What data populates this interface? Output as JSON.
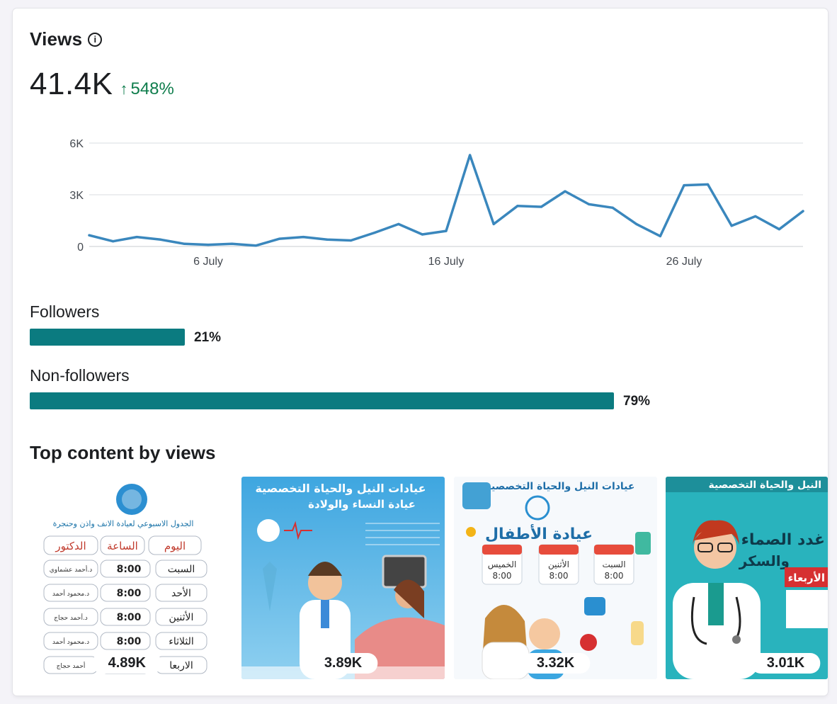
{
  "views": {
    "title": "Views",
    "total": "41.4K",
    "change": "548%"
  },
  "chart_data": {
    "type": "line",
    "title": "",
    "xlabel": "",
    "ylabel": "",
    "x": [
      "1 July",
      "2 July",
      "3 July",
      "4 July",
      "5 July",
      "6 July",
      "7 July",
      "8 July",
      "9 July",
      "10 July",
      "11 July",
      "12 July",
      "13 July",
      "14 July",
      "15 July",
      "16 July",
      "17 July",
      "18 July",
      "19 July",
      "20 July",
      "21 July",
      "22 July",
      "23 July",
      "24 July",
      "25 July",
      "26 July",
      "27 July",
      "28 July",
      "29 July",
      "30 July",
      "31 July"
    ],
    "series": [
      {
        "values": [
          650,
          300,
          550,
          400,
          150,
          100,
          150,
          50,
          450,
          550,
          400,
          350,
          800,
          1300,
          700,
          900,
          5300,
          1300,
          2350,
          2300,
          3200,
          2450,
          2250,
          1300,
          600,
          3550,
          3600,
          1200,
          1750,
          1000,
          2050
        ]
      }
    ],
    "yticks": [
      "0",
      "3K",
      "6K"
    ],
    "ytick_values": [
      0,
      3000,
      6000
    ],
    "xticks": [
      "6 July",
      "16 July",
      "26 July"
    ],
    "ylim": [
      0,
      6000
    ],
    "grid": true,
    "line_color": "#3a87bd"
  },
  "audience": [
    {
      "label": "Followers",
      "percent": "21%",
      "fraction": 0.21
    },
    {
      "label": "Non-followers",
      "percent": "79%",
      "fraction": 0.79
    }
  ],
  "top_content": {
    "title": "Top content by views",
    "items": [
      {
        "views": "4.89K",
        "heading": "الجدول الاسبوعي لعيادة الانف واذن وحنجرة",
        "col1": "اليوم",
        "col2": "الساعة",
        "col3": "الدكتور",
        "days": [
          "السبت",
          "الأحد",
          "الأثنين",
          "الثلاثاء",
          "الاربعا"
        ],
        "time": "8:00",
        "doctors": [
          "د.أحمد عشماوي",
          "د.محمود أحمد",
          "د.أحمد حجاج",
          "د.محمود أحمد",
          "أحمد حجاج"
        ]
      },
      {
        "views": "3.89K",
        "heading": "عيادات النيل والحياة التخصصية",
        "subheading": "عيادة النساء والولادة"
      },
      {
        "views": "3.32K",
        "heading": "عيادات النيل والحياة التخصصية",
        "subheading": "عيادة الأطفال",
        "days": [
          "الخميس",
          "الأثنين",
          "السبت"
        ],
        "time": "8:00"
      },
      {
        "views": "3.01K",
        "heading": "النيل والحياة التخصصية",
        "line1": "غدد الصماء",
        "line2": "والسكر",
        "line3": "الأربعاء"
      }
    ]
  },
  "colors": {
    "accent": "#0b7b80",
    "positive": "#0f7d4c"
  }
}
